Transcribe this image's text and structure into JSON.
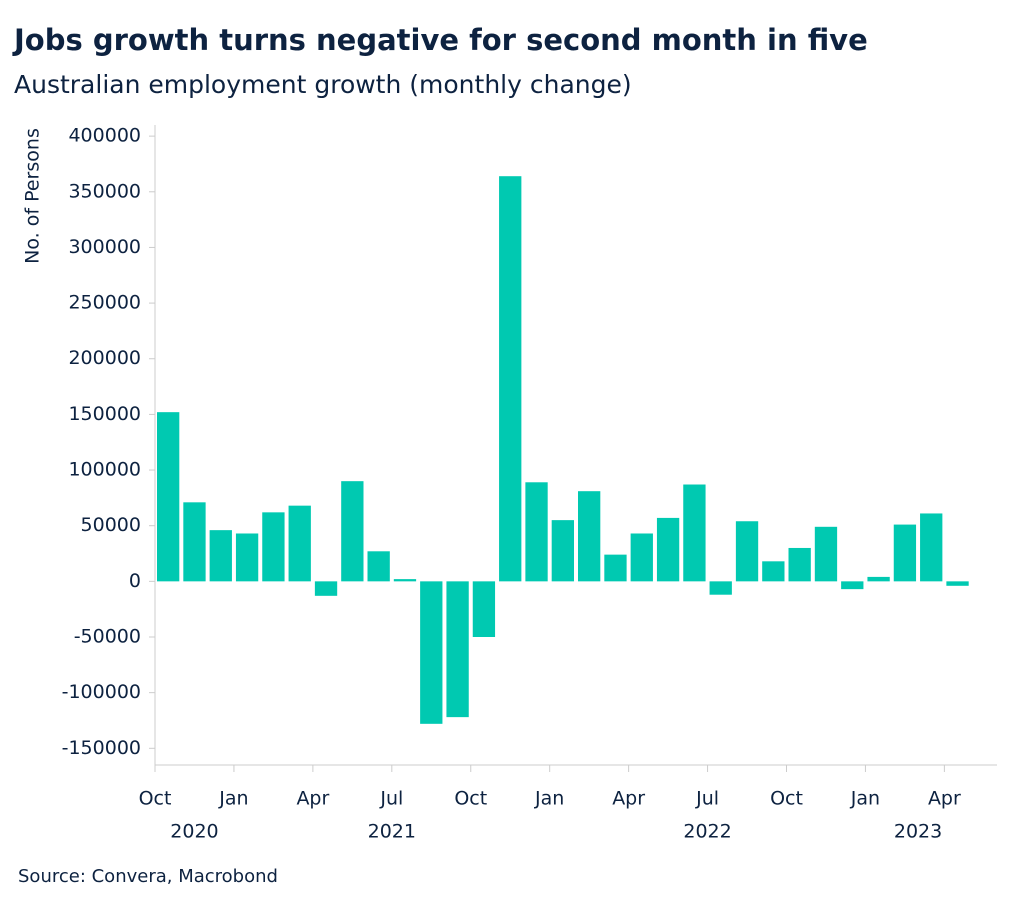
{
  "chart_data": {
    "type": "bar",
    "title": "Jobs growth turns negative for second month in five",
    "subtitle": "Australian employment growth (monthly change)",
    "y_label": "No. of Persons",
    "source": "Source: Convera, Macrobond",
    "color": "#00c9b1",
    "x": [
      "2020-10",
      "2020-11",
      "2020-12",
      "2021-01",
      "2021-02",
      "2021-03",
      "2021-04",
      "2021-05",
      "2021-06",
      "2021-07",
      "2021-08",
      "2021-09",
      "2021-10",
      "2021-11",
      "2021-12",
      "2022-01",
      "2022-02",
      "2022-03",
      "2022-04",
      "2022-05",
      "2022-06",
      "2022-07",
      "2022-08",
      "2022-09",
      "2022-10",
      "2022-11",
      "2022-12",
      "2023-01",
      "2023-02",
      "2023-03",
      "2023-04"
    ],
    "values": [
      152000,
      71000,
      46000,
      43000,
      62000,
      68000,
      -13000,
      90000,
      27000,
      2000,
      -128000,
      -122000,
      -50000,
      364000,
      89000,
      55000,
      81000,
      24000,
      43000,
      57000,
      87000,
      -12000,
      54000,
      18000,
      30000,
      49000,
      -7000,
      4000,
      51000,
      61000,
      -4000
    ],
    "xticks": [
      {
        "value": "2020-10",
        "label": "Oct"
      },
      {
        "value": "2021-01",
        "label": "Jan"
      },
      {
        "value": "2021-04",
        "label": "Apr"
      },
      {
        "value": "2021-07",
        "label": "Jul"
      },
      {
        "value": "2021-10",
        "label": "Oct"
      },
      {
        "value": "2022-01",
        "label": "Jan"
      },
      {
        "value": "2022-04",
        "label": "Apr"
      },
      {
        "value": "2022-07",
        "label": "Jul"
      },
      {
        "value": "2022-10",
        "label": "Oct"
      },
      {
        "value": "2023-01",
        "label": "Jan"
      },
      {
        "value": "2023-04",
        "label": "Apr"
      }
    ],
    "year_labels": [
      "2020",
      "2021",
      "2022",
      "2023"
    ],
    "ylim": [
      -165000,
      410000
    ],
    "yticks": [
      -150000,
      -100000,
      -50000,
      0,
      50000,
      100000,
      150000,
      200000,
      250000,
      300000,
      350000,
      400000
    ]
  }
}
